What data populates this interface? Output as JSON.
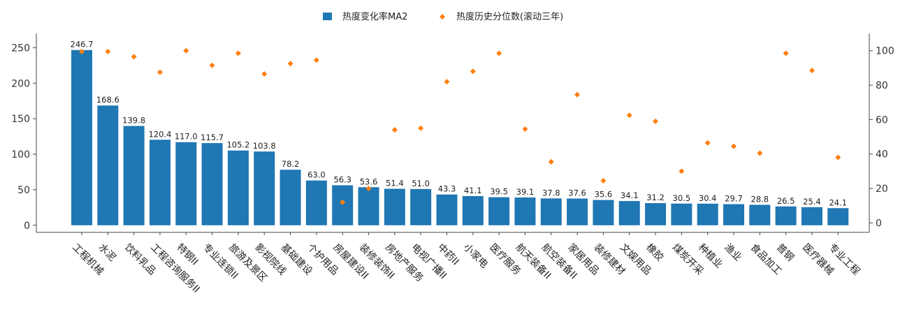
{
  "chart_data": {
    "type": "bar",
    "title": "",
    "xlabel": "",
    "ylabel": "",
    "categories": [
      "工程机械",
      "水泥",
      "饮料乳品",
      "工程咨询服务II",
      "特钢II",
      "专业连锁II",
      "旅游及景区",
      "影视院线",
      "基础建设",
      "个护用品",
      "房屋建设II",
      "装修装饰II",
      "房地产服务",
      "电视广播II",
      "中药II",
      "小家电",
      "医疗服务",
      "航天装备II",
      "航空装备II",
      "家居用品",
      "装修建材",
      "文娱用品",
      "橡胶",
      "煤炭开采",
      "种植业",
      "渔业",
      "食品加工",
      "普钢",
      "医疗器械",
      "专业工程"
    ],
    "series": [
      {
        "name": "热度变化率MA2",
        "type": "bar",
        "axis": "left",
        "color": "#1f77b4",
        "values": [
          246.7,
          168.6,
          139.8,
          120.4,
          117.0,
          115.7,
          105.2,
          103.8,
          78.2,
          63.0,
          56.3,
          53.6,
          51.4,
          51.0,
          43.3,
          41.1,
          39.5,
          39.1,
          37.8,
          37.6,
          35.6,
          34.1,
          31.2,
          30.5,
          30.4,
          29.7,
          28.8,
          26.5,
          25.4,
          24.1
        ],
        "value_labels": [
          "246.7",
          "168.6",
          "139.8",
          "120.4",
          "117.0",
          "115.7",
          "105.2",
          "103.8",
          "78.2",
          "63.0",
          "56.3",
          "53.6",
          "51.4",
          "51.0",
          "43.3",
          "41.1",
          "39.5",
          "39.1",
          "37.8",
          "37.6",
          "35.6",
          "34.1",
          "31.2",
          "30.5",
          "30.4",
          "29.7",
          "28.8",
          "26.5",
          "25.4",
          "24.1"
        ]
      },
      {
        "name": "热度历史分位数(滚动三年)",
        "type": "scatter",
        "axis": "right",
        "color": "#ff7f0e",
        "values": [
          99.5,
          99.5,
          96.5,
          87.5,
          100,
          91.5,
          98.5,
          86.5,
          92.5,
          94.5,
          12,
          20,
          54,
          55,
          82,
          88,
          98.5,
          54.5,
          35.5,
          74.5,
          24.5,
          62.5,
          59,
          30,
          46.5,
          44.5,
          40.5,
          98.5,
          88.5,
          38
        ]
      }
    ],
    "ylim": [
      -10,
      270
    ],
    "yticks": [
      "0",
      "50",
      "100",
      "150",
      "200",
      "250"
    ],
    "y2lim": [
      -5.5,
      110
    ],
    "y2ticks": [
      "0",
      "20",
      "40",
      "60",
      "80",
      "100"
    ],
    "grid": false,
    "legend_position": "top-center"
  }
}
